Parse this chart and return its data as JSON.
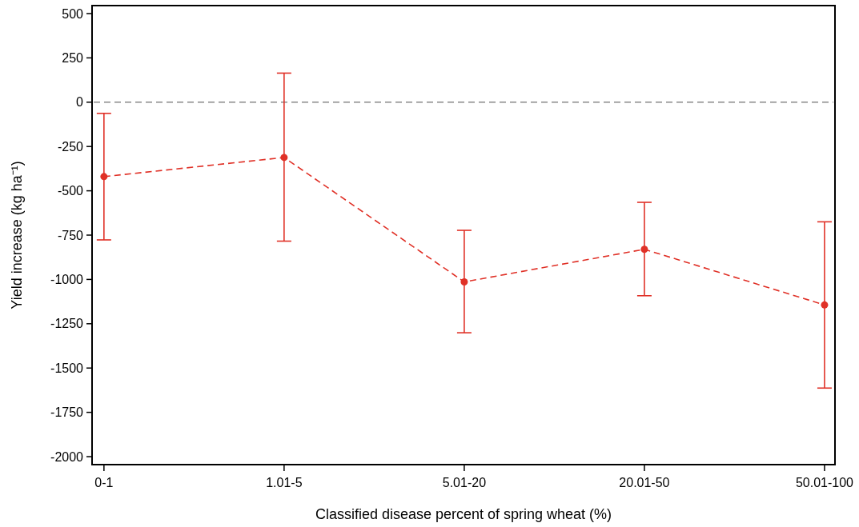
{
  "chart_data": {
    "type": "line",
    "xlabel": "Classified disease percent of spring wheat (%)",
    "ylabel": "Yield increase (kg ha⁻¹)",
    "categories": [
      "0-1",
      "1.01-5",
      "5.01-20",
      "20.01-50",
      "50.01-100"
    ],
    "series": [
      {
        "color": "#e03127",
        "values": [
          -420,
          -312,
          -1014,
          -830,
          -1144
        ],
        "errors": [
          [
            -777,
            -63
          ],
          [
            -784,
            164
          ],
          [
            -1301,
            -723
          ],
          [
            -1092,
            -565
          ],
          [
            -1613,
            -675
          ]
        ]
      }
    ],
    "ylim": [
      -2045,
      545
    ],
    "yticks": [
      -2000,
      -1750,
      -1500,
      -1250,
      -1000,
      -750,
      -500,
      -250,
      0,
      250,
      500
    ],
    "ref_lines": [
      {
        "axis": "y",
        "value": 0,
        "color": "#888888",
        "line_style": "dashed"
      }
    ],
    "marker": "circle",
    "line_style": "dashed",
    "grid": false
  }
}
